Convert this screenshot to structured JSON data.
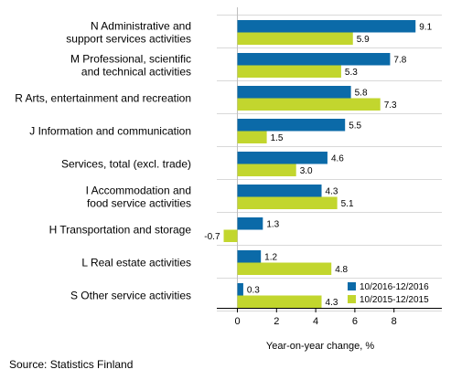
{
  "chart_data": {
    "type": "bar",
    "orientation": "horizontal",
    "categories": [
      [
        "N Administrative and",
        "support services activities"
      ],
      [
        "M Professional, scientific",
        "and technical activities"
      ],
      [
        "R Arts, entertainment and recreation"
      ],
      [
        "J Information and communication"
      ],
      [
        "Services, total (excl. trade)"
      ],
      [
        "I Accommodation and",
        "food service activities"
      ],
      [
        "H Transportation and storage"
      ],
      [
        "L Real estate activities"
      ],
      [
        "S Other service activities"
      ]
    ],
    "series": [
      {
        "name": "10/2016-12/2016",
        "color": "#0b6aa8",
        "values": [
          9.1,
          7.8,
          5.8,
          5.5,
          4.6,
          4.3,
          1.3,
          1.2,
          0.3
        ],
        "labels": [
          "9.1",
          "7.8",
          "5.8",
          "5.5",
          "4.6",
          "4.3",
          "1.3",
          "1.2",
          "0.3"
        ]
      },
      {
        "name": "10/2015-12/2015",
        "color": "#c2d62e",
        "values": [
          5.9,
          5.3,
          7.3,
          1.5,
          3.0,
          5.1,
          -0.7,
          4.8,
          4.3
        ],
        "labels": [
          "5.9",
          "5.3",
          "7.3",
          "1.5",
          "3.0",
          "5.1",
          "-0.7",
          "4.8",
          "4.3"
        ]
      }
    ],
    "xticks": [
      0,
      2,
      4,
      6,
      8
    ],
    "xlim": [
      -1.2,
      10.3
    ],
    "xlabel": "Year-on-year change, %",
    "ylabel": "",
    "grid": true,
    "legend_position": "bottom-right"
  },
  "source": "Source: Statistics Finland"
}
